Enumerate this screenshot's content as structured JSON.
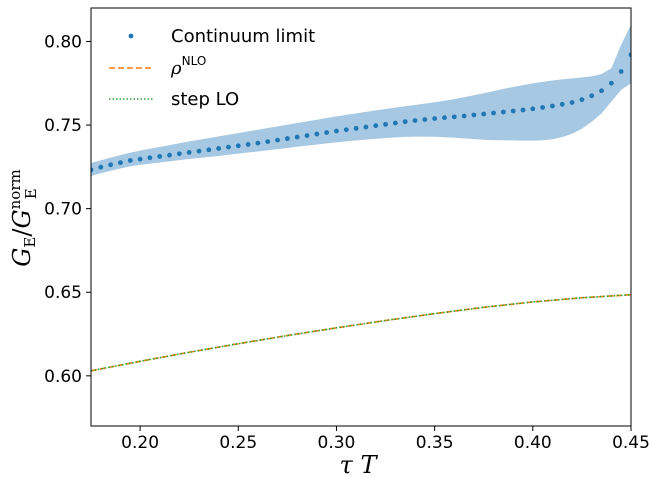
{
  "chart_data": {
    "type": "line",
    "xlabel": "τ T",
    "ylabel": {
      "main": "G",
      "sub": "E",
      "over": "G",
      "over_sup": "norm",
      "over_sub": "E"
    },
    "xlim": [
      0.175,
      0.45
    ],
    "ylim": [
      0.57,
      0.82
    ],
    "xticks": [
      0.2,
      0.25,
      0.3,
      0.35,
      0.4,
      0.45
    ],
    "xtick_labels": [
      "0.20",
      "0.25",
      "0.30",
      "0.35",
      "0.40",
      "0.45"
    ],
    "yticks": [
      0.6,
      0.65,
      0.7,
      0.75,
      0.8
    ],
    "ytick_labels": [
      "0.60",
      "0.65",
      "0.70",
      "0.75",
      "0.80"
    ],
    "grid": false,
    "legend_position": "top-left",
    "series": [
      {
        "name": "Continuum limit",
        "style": "dots",
        "color": "#1f77b4",
        "band_color": "#a6c8e3",
        "x": [
          0.175,
          0.18,
          0.185,
          0.19,
          0.195,
          0.2,
          0.205,
          0.21,
          0.215,
          0.22,
          0.225,
          0.23,
          0.235,
          0.24,
          0.245,
          0.25,
          0.255,
          0.26,
          0.265,
          0.27,
          0.275,
          0.28,
          0.285,
          0.29,
          0.295,
          0.3,
          0.305,
          0.31,
          0.315,
          0.32,
          0.325,
          0.33,
          0.335,
          0.34,
          0.345,
          0.35,
          0.355,
          0.36,
          0.365,
          0.37,
          0.375,
          0.38,
          0.385,
          0.39,
          0.395,
          0.4,
          0.405,
          0.41,
          0.415,
          0.42,
          0.425,
          0.43,
          0.435,
          0.44,
          0.445,
          0.45
        ],
        "y": [
          0.7232,
          0.7248,
          0.7262,
          0.7275,
          0.7288,
          0.7296,
          0.7304,
          0.7312,
          0.732,
          0.7328,
          0.7336,
          0.7344,
          0.7352,
          0.736,
          0.7368,
          0.7376,
          0.7384,
          0.7392,
          0.7401,
          0.741,
          0.7419,
          0.7428,
          0.7437,
          0.7446,
          0.7455,
          0.7464,
          0.7472,
          0.748,
          0.7488,
          0.7496,
          0.7504,
          0.7512,
          0.752,
          0.7527,
          0.7533,
          0.7539,
          0.7544,
          0.7549,
          0.7554,
          0.756,
          0.7566,
          0.7572,
          0.7578,
          0.7584,
          0.759,
          0.7597,
          0.7605,
          0.7614,
          0.7624,
          0.7635,
          0.7652,
          0.7675,
          0.7705,
          0.775,
          0.782,
          0.792
        ],
        "y_lower": [
          0.7195,
          0.7212,
          0.7227,
          0.724,
          0.7253,
          0.7262,
          0.7269,
          0.7276,
          0.7283,
          0.729,
          0.7297,
          0.7303,
          0.7309,
          0.7315,
          0.7322,
          0.7329,
          0.7336,
          0.7342,
          0.7349,
          0.7356,
          0.7363,
          0.737,
          0.7377,
          0.7384,
          0.739,
          0.7396,
          0.7402,
          0.7408,
          0.7413,
          0.7418,
          0.7422,
          0.7426,
          0.7429,
          0.7431,
          0.7431,
          0.743,
          0.7427,
          0.7424,
          0.742,
          0.7416,
          0.7412,
          0.741,
          0.7409,
          0.7408,
          0.7407,
          0.7407,
          0.7409,
          0.7415,
          0.7428,
          0.7448,
          0.7478,
          0.752,
          0.757,
          0.764,
          0.771,
          0.775
        ],
        "y_upper": [
          0.7272,
          0.7289,
          0.7305,
          0.732,
          0.7335,
          0.7347,
          0.7358,
          0.7369,
          0.738,
          0.7391,
          0.7402,
          0.7412,
          0.7422,
          0.7432,
          0.7442,
          0.7452,
          0.7462,
          0.7472,
          0.7482,
          0.7492,
          0.7502,
          0.7512,
          0.7522,
          0.7532,
          0.7542,
          0.7552,
          0.7561,
          0.757,
          0.7579,
          0.7588,
          0.7596,
          0.7604,
          0.7612,
          0.762,
          0.7628,
          0.7636,
          0.7645,
          0.7655,
          0.7666,
          0.7678,
          0.769,
          0.7703,
          0.7716,
          0.7728,
          0.7739,
          0.7749,
          0.7758,
          0.7766,
          0.7773,
          0.7779,
          0.7785,
          0.7791,
          0.7805,
          0.784,
          0.798,
          0.81
        ]
      },
      {
        "name": "ρ",
        "name_sup": "NLO",
        "style": "dashed",
        "color": "#ff7f0e",
        "x": [
          0.175,
          0.2,
          0.225,
          0.25,
          0.275,
          0.3,
          0.325,
          0.35,
          0.375,
          0.4,
          0.425,
          0.45
        ],
        "y": [
          0.603,
          0.6087,
          0.6141,
          0.6192,
          0.6241,
          0.6287,
          0.6331,
          0.6372,
          0.641,
          0.6442,
          0.6467,
          0.6485
        ]
      },
      {
        "name": "step LO",
        "style": "dotted",
        "color": "#2ca02c",
        "x": [
          0.175,
          0.2,
          0.225,
          0.25,
          0.275,
          0.3,
          0.325,
          0.35,
          0.375,
          0.4,
          0.425,
          0.45
        ],
        "y": [
          0.603,
          0.6087,
          0.6141,
          0.6192,
          0.6241,
          0.6287,
          0.6331,
          0.6372,
          0.641,
          0.6442,
          0.6467,
          0.6485
        ]
      }
    ]
  }
}
